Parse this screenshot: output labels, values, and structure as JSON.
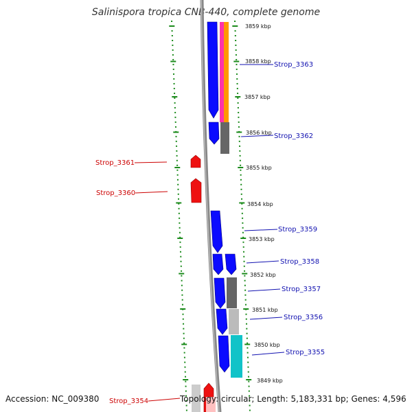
{
  "title": "Salinispora tropica CNB-440, complete genome",
  "footer": {
    "accession": "Accession: NC_009380",
    "topology": "Topology: circular; Length: 5,183,331 bp; Genes: 4,596"
  },
  "scale_labels": [
    "3859 kbp",
    "3858 kbp",
    "3857 kbp",
    "3856 kbp",
    "3855 kbp",
    "3854 kbp",
    "3853 kbp",
    "3852 kbp",
    "3851 kbp",
    "3850 kbp",
    "3849 kbp"
  ],
  "genes_forward": [
    {
      "label": "Strop_3363",
      "color": "#1010b0"
    },
    {
      "label": "Strop_3362",
      "color": "#1010b0"
    },
    {
      "label": "Strop_3359",
      "color": "#1010b0"
    },
    {
      "label": "Strop_3358",
      "color": "#1010b0"
    },
    {
      "label": "Strop_3357",
      "color": "#1010b0"
    },
    {
      "label": "Strop_3356",
      "color": "#1010b0"
    },
    {
      "label": "Strop_3355",
      "color": "#1010b0"
    }
  ],
  "genes_reverse": [
    {
      "label": "Strop_3361",
      "color": "#cc0000"
    },
    {
      "label": "Strop_3360",
      "color": "#cc0000"
    },
    {
      "label": "Strop_3354",
      "color": "#cc0000"
    }
  ],
  "colors": {
    "forward_gene": "#0b0bff",
    "reverse_gene": "#ee1111",
    "backbone": "#888888",
    "ruler": "#1a8a1a"
  }
}
